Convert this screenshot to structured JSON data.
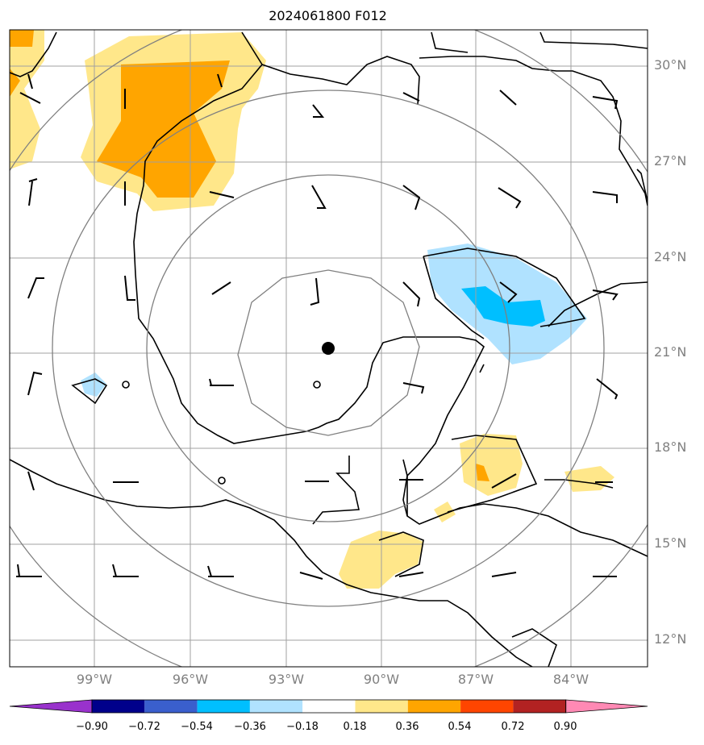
{
  "title": "2024061800 F012",
  "lat_labels": [
    "30°N",
    "27°N",
    "24°N",
    "21°N",
    "18°N",
    "15°N",
    "12°N"
  ],
  "lon_labels": [
    "99°W",
    "96°W",
    "93°W",
    "90°W",
    "87°W",
    "84°W"
  ],
  "colorbar": {
    "ticks": [
      "−0.90",
      "−0.72",
      "−0.54",
      "−0.36",
      "−0.18",
      "0.18",
      "0.36",
      "0.54",
      "0.72",
      "0.90"
    ],
    "colors": [
      "#9932cc",
      "#00008b",
      "#3a5fcd",
      "#00bfff",
      "#b0e2ff",
      "#ffffff",
      "#ffe78a",
      "#ffa500",
      "#ff4500",
      "#b22222",
      "#ff89b4"
    ]
  },
  "colors": {
    "shade_light_yellow": "#ffe78a",
    "shade_orange": "#ffa500",
    "shade_light_blue": "#b0e2ff",
    "shade_blue": "#00bfff",
    "range_rings": "#808080",
    "grid": "#a0a0a0",
    "coast": "#000000"
  },
  "center_marker": "filled-black-dot"
}
